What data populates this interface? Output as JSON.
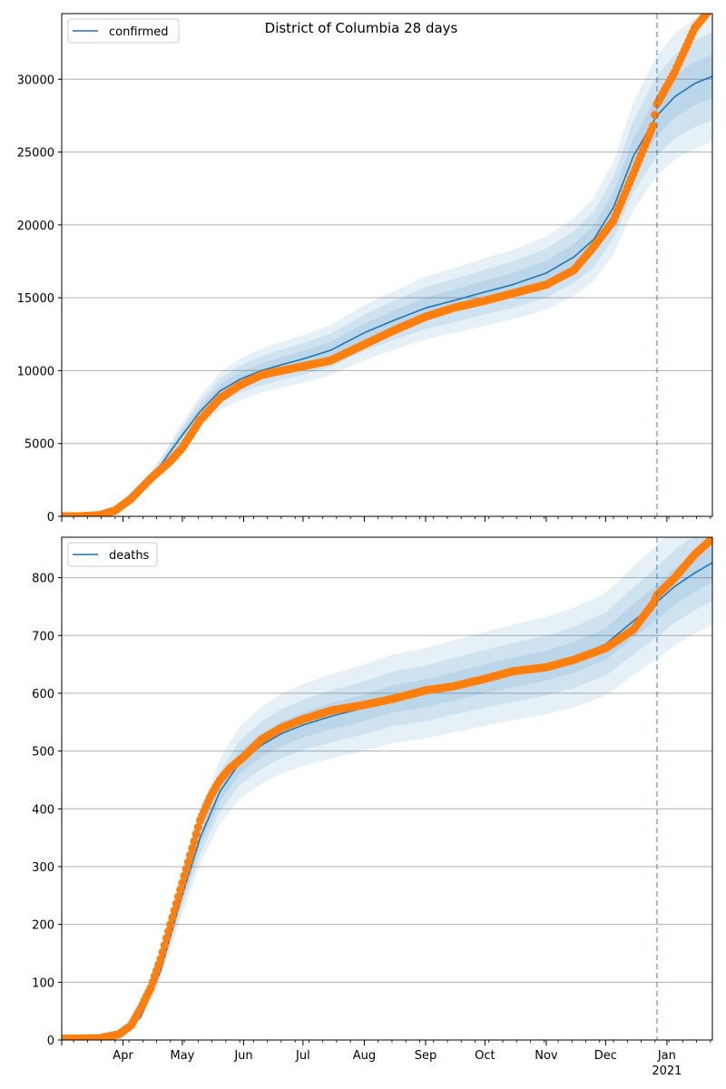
{
  "title": "District of Columbia 28 days",
  "colors": {
    "fit": "#1f77b4",
    "observed": "#ff7f0e",
    "band": "#1f77b4",
    "grid": "#b0b0b0",
    "forecast_line": "#1f77b4"
  },
  "chart_data": [
    {
      "type": "line",
      "legend": "confirmed",
      "legend_position": "top-left",
      "grid": "horizontal",
      "xlim": [
        "2020-03-01",
        "2021-01-24"
      ],
      "ylim": [
        0,
        34500
      ],
      "yticks": [
        0,
        5000,
        10000,
        15000,
        20000,
        25000,
        30000
      ],
      "forecast_start": "2020-12-27",
      "fit": {
        "name": "confirmed",
        "x": [
          "2020-03-01",
          "2020-03-15",
          "2020-03-25",
          "2020-04-01",
          "2020-04-10",
          "2020-04-20",
          "2020-04-30",
          "2020-05-10",
          "2020-05-20",
          "2020-05-30",
          "2020-06-10",
          "2020-06-20",
          "2020-07-01",
          "2020-07-15",
          "2020-08-01",
          "2020-08-15",
          "2020-09-01",
          "2020-09-15",
          "2020-10-01",
          "2020-10-15",
          "2020-11-01",
          "2020-11-15",
          "2020-11-25",
          "2020-12-05",
          "2020-12-15",
          "2020-12-27",
          "2021-01-05",
          "2021-01-15",
          "2021-01-24"
        ],
        "y": [
          0,
          10,
          150,
          700,
          1900,
          3500,
          5400,
          7200,
          8600,
          9400,
          10000,
          10400,
          10800,
          11400,
          12600,
          13400,
          14300,
          14800,
          15400,
          15900,
          16700,
          17800,
          19000,
          21200,
          24700,
          27500,
          28800,
          29700,
          30200
        ]
      },
      "band_half_widths": [
        0.05,
        0.1,
        0.15
      ],
      "observed": {
        "name": "observed",
        "x": [
          "2020-03-01",
          "2020-03-10",
          "2020-03-20",
          "2020-03-28",
          "2020-04-05",
          "2020-04-15",
          "2020-04-25",
          "2020-05-01",
          "2020-05-10",
          "2020-05-20",
          "2020-05-30",
          "2020-06-10",
          "2020-06-20",
          "2020-07-01",
          "2020-07-15",
          "2020-08-01",
          "2020-08-15",
          "2020-09-01",
          "2020-09-15",
          "2020-10-01",
          "2020-10-15",
          "2020-11-01",
          "2020-11-15",
          "2020-11-25",
          "2020-12-05",
          "2020-12-15",
          "2020-12-25",
          "2020-12-27",
          "2021-01-05",
          "2021-01-15",
          "2021-01-24"
        ],
        "y": [
          0,
          5,
          80,
          400,
          1200,
          2600,
          3800,
          4700,
          6600,
          8100,
          9000,
          9700,
          10000,
          10300,
          10700,
          11800,
          12700,
          13700,
          14300,
          14800,
          15300,
          15900,
          16900,
          18500,
          20300,
          23500,
          26800,
          28300,
          30500,
          33500,
          35000
        ]
      }
    },
    {
      "type": "line",
      "legend": "deaths",
      "legend_position": "top-left",
      "grid": "horizontal",
      "xlim": [
        "2020-03-01",
        "2021-01-24"
      ],
      "ylim": [
        0,
        870
      ],
      "yticks": [
        0,
        100,
        200,
        300,
        400,
        500,
        600,
        700,
        800
      ],
      "forecast_start": "2020-12-27",
      "xtick_labels": [
        "Apr",
        "May",
        "Jun",
        "Jul",
        "Aug",
        "Sep",
        "Oct",
        "Nov",
        "Dec",
        "Jan"
      ],
      "xtick_dates": [
        "2020-04-01",
        "2020-05-01",
        "2020-06-01",
        "2020-07-01",
        "2020-08-01",
        "2020-09-01",
        "2020-10-01",
        "2020-11-01",
        "2020-12-01",
        "2021-01-01"
      ],
      "year_label": "2021",
      "fit": {
        "name": "deaths",
        "x": [
          "2020-03-01",
          "2020-03-20",
          "2020-04-01",
          "2020-04-10",
          "2020-04-20",
          "2020-04-30",
          "2020-05-10",
          "2020-05-20",
          "2020-05-30",
          "2020-06-10",
          "2020-06-20",
          "2020-07-01",
          "2020-07-15",
          "2020-08-01",
          "2020-08-15",
          "2020-09-01",
          "2020-09-15",
          "2020-10-01",
          "2020-10-15",
          "2020-11-01",
          "2020-11-15",
          "2020-12-01",
          "2020-12-15",
          "2020-12-27",
          "2021-01-05",
          "2021-01-15",
          "2021-01-24"
        ],
        "y": [
          0,
          1,
          10,
          40,
          120,
          240,
          350,
          430,
          480,
          510,
          530,
          545,
          560,
          575,
          590,
          600,
          612,
          625,
          636,
          648,
          662,
          685,
          725,
          758,
          785,
          808,
          826
        ]
      },
      "band_half_widths": [
        0.04,
        0.08,
        0.13
      ],
      "observed": {
        "name": "observed",
        "x": [
          "2020-03-01",
          "2020-03-20",
          "2020-03-30",
          "2020-04-05",
          "2020-04-10",
          "2020-04-15",
          "2020-04-20",
          "2020-04-25",
          "2020-04-30",
          "2020-05-05",
          "2020-05-10",
          "2020-05-15",
          "2020-05-20",
          "2020-05-25",
          "2020-06-01",
          "2020-06-10",
          "2020-06-20",
          "2020-07-01",
          "2020-07-15",
          "2020-08-01",
          "2020-08-15",
          "2020-09-01",
          "2020-09-15",
          "2020-10-01",
          "2020-10-15",
          "2020-11-01",
          "2020-11-15",
          "2020-12-01",
          "2020-12-15",
          "2020-12-25",
          "2020-12-27",
          "2021-01-05",
          "2021-01-15",
          "2021-01-24"
        ],
        "y": [
          2,
          3,
          10,
          25,
          55,
          90,
          140,
          200,
          260,
          320,
          380,
          420,
          450,
          470,
          490,
          520,
          540,
          555,
          570,
          580,
          590,
          605,
          612,
          625,
          638,
          645,
          658,
          678,
          710,
          755,
          770,
          800,
          840,
          868
        ]
      }
    }
  ]
}
